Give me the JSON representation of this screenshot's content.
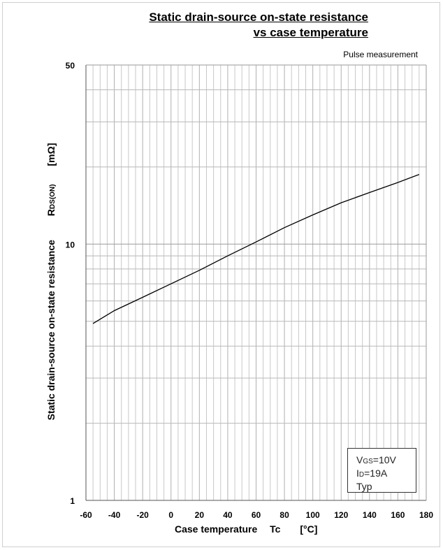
{
  "title": {
    "line1": "Static drain-source on-state resistance",
    "line2": "vs case temperature"
  },
  "note": "Pulse measurement",
  "y_axis": {
    "label": "Static drain-source on-state resistance",
    "symbol_main": "R",
    "symbol_sub": "DS(ON)",
    "unit": "[mΩ]"
  },
  "x_axis": {
    "label": "Case temperature",
    "symbol": "Tc",
    "unit": "[°C]"
  },
  "conditions": {
    "vgs_main": "V",
    "vgs_sub": "GS",
    "vgs_value": "=10V",
    "id_main": "I",
    "id_sub": "D",
    "id_value": "=19A",
    "typ": "Typ"
  },
  "chart_data": {
    "type": "line",
    "yscale": "log",
    "xlim": [
      -60,
      180
    ],
    "ylim": [
      1,
      50
    ],
    "x_ticks": [
      "-60",
      "-40",
      "-20",
      "0",
      "20",
      "40",
      "60",
      "80",
      "100",
      "120",
      "140",
      "160",
      "180"
    ],
    "y_ticks": [
      "1",
      "10",
      "50"
    ],
    "grid": true,
    "series": [
      {
        "x": [
          -55,
          -40,
          -20,
          0,
          20,
          40,
          60,
          80,
          100,
          120,
          140,
          160,
          175
        ],
        "y": [
          4.9,
          5.5,
          6.2,
          7.0,
          7.9,
          9.0,
          10.2,
          11.6,
          13.0,
          14.5,
          15.9,
          17.4,
          18.7
        ]
      }
    ]
  }
}
